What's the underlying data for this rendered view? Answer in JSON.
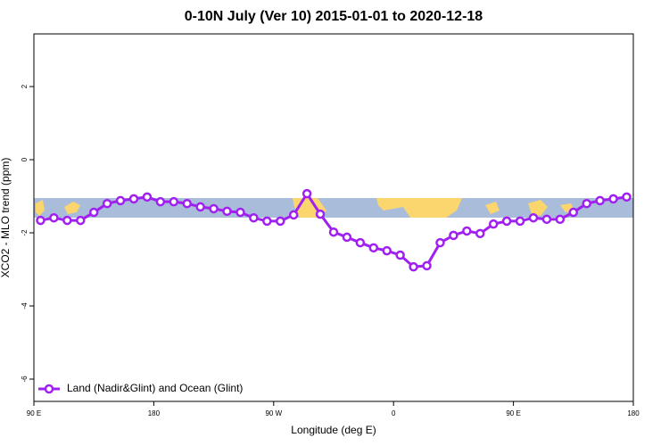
{
  "chart_data": {
    "type": "line",
    "title": "0-10N July (Ver 10)   2015-01-01 to 2020-12-18",
    "x_label": "Longitude (deg E)",
    "y_label": "XCO2 - MLO trend (ppm)",
    "xlim": [
      90,
      540
    ],
    "ylim": [
      -6.61,
      3.44
    ],
    "xticks": [
      {
        "value": 90,
        "label": "90 E"
      },
      {
        "value": 180,
        "label": "180"
      },
      {
        "value": 270,
        "label": "90 W"
      },
      {
        "value": 360,
        "label": "0"
      },
      {
        "value": 450,
        "label": "90 E"
      },
      {
        "value": 540,
        "label": "180"
      }
    ],
    "yticks": [
      2,
      0,
      -2,
      -4,
      -6
    ],
    "legend_position": "lower left",
    "x": [
      95,
      105,
      115,
      125,
      135,
      145,
      155,
      165,
      175,
      185,
      195,
      205,
      215,
      225,
      235,
      245,
      255,
      265,
      275,
      285,
      295,
      305,
      315,
      325,
      335,
      345,
      355,
      365,
      375,
      385,
      395,
      405,
      415,
      425,
      435,
      445,
      455,
      465,
      475,
      485,
      495,
      505,
      515,
      525,
      535
    ],
    "series": [
      {
        "name": "Land (Nadir&Glint) and Ocean (Glint)",
        "color": "#a020f0",
        "values": [
          -1.66,
          -1.59,
          -1.66,
          -1.66,
          -1.44,
          -1.2,
          -1.12,
          -1.07,
          -1.02,
          -1.15,
          -1.15,
          -1.2,
          -1.29,
          -1.34,
          -1.41,
          -1.44,
          -1.59,
          -1.68,
          -1.68,
          -1.51,
          -0.93,
          -1.49,
          -1.98,
          -2.12,
          -2.27,
          -2.41,
          -2.49,
          -2.61,
          -2.93,
          -2.9,
          -2.27,
          -2.07,
          -1.95,
          -2.02,
          -1.76,
          -1.68,
          -1.68,
          -1.59,
          -1.63,
          -1.63,
          -1.44,
          -1.2,
          -1.12,
          -1.07,
          -1.02
        ]
      }
    ]
  }
}
